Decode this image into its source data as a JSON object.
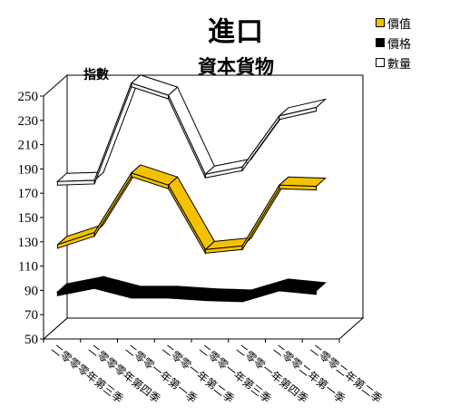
{
  "chart_data": {
    "type": "line",
    "style": "3d-ribbon",
    "title": "進口",
    "subtitle": "資本貨物",
    "ylabel": "指數",
    "xlabel": "",
    "ylim": [
      50,
      250
    ],
    "yticks": [
      50,
      70,
      90,
      110,
      130,
      150,
      170,
      190,
      210,
      230,
      250
    ],
    "grid": false,
    "legend_position": "top-right",
    "categories": [
      "二零零零年第三季",
      "二零零零年第四季",
      "二零零一年第一季",
      "二零零一年第二季",
      "二零零一年第三季",
      "二零零一年第四季",
      "二零零二年第一季",
      "二零零二年第二季"
    ],
    "series": [
      {
        "name": "價值",
        "color": "#f5c200",
        "values": [
          131,
          141,
          190,
          180,
          127,
          130,
          180,
          179
        ]
      },
      {
        "name": "價格",
        "color": "#000000",
        "values": [
          92,
          98,
          90,
          90,
          88,
          87,
          96,
          93
        ]
      },
      {
        "name": "數量",
        "color": "#ffffff",
        "values": [
          183,
          184,
          264,
          254,
          189,
          195,
          237,
          244
        ]
      }
    ]
  }
}
